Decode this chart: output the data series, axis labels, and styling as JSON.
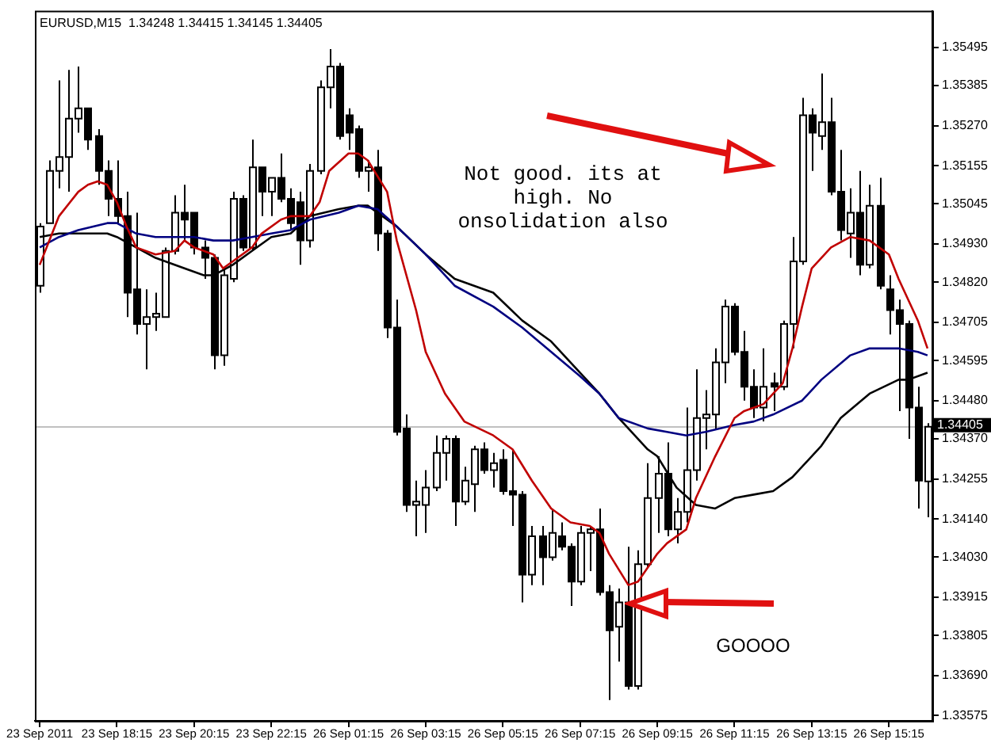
{
  "chart_data": {
    "type": "candlestick",
    "title": "EURUSD,M15  1.34248 1.34415 1.34145 1.34405",
    "categories": [
      "23 Sep 2011",
      null,
      null,
      null,
      null,
      null,
      null,
      null,
      "23 Sep 18:15",
      null,
      null,
      null,
      null,
      null,
      null,
      null,
      "23 Sep 20:15",
      null,
      null,
      null,
      null,
      null,
      null,
      null,
      "23 Sep 22:15",
      null,
      null,
      null,
      null,
      null,
      null,
      null,
      "26 Sep 01:15",
      null,
      null,
      null,
      null,
      null,
      null,
      null,
      "26 Sep 03:15",
      null,
      null,
      null,
      null,
      null,
      null,
      null,
      "26 Sep 05:15",
      null,
      null,
      null,
      null,
      null,
      null,
      null,
      "26 Sep 07:15",
      null,
      null,
      null,
      null,
      null,
      null,
      null,
      "26 Sep 09:15",
      null,
      null,
      null,
      null,
      null,
      null,
      null,
      "26 Sep 11:15",
      null,
      null,
      null,
      null,
      null,
      null,
      null,
      "26 Sep 13:15",
      null,
      null,
      null,
      null,
      null,
      null,
      null,
      "26 Sep 15:15",
      null,
      null,
      null,
      null
    ],
    "ohlc": [
      [
        1.3481,
        1.3499,
        1.3479,
        1.3498
      ],
      [
        1.3499,
        1.3517,
        1.3499,
        1.3514
      ],
      [
        1.3514,
        1.354,
        1.3509,
        1.3518
      ],
      [
        1.3518,
        1.3543,
        1.3508,
        1.3529
      ],
      [
        1.3529,
        1.3544,
        1.3525,
        1.3532
      ],
      [
        1.3532,
        1.3532,
        1.352,
        1.3523
      ],
      [
        1.3524,
        1.3526,
        1.351,
        1.3514
      ],
      [
        1.3514,
        1.3517,
        1.3501,
        1.3506
      ],
      [
        1.3506,
        1.3517,
        1.3499,
        1.3501
      ],
      [
        1.3501,
        1.3508,
        1.3472,
        1.3479
      ],
      [
        1.348,
        1.3502,
        1.3467,
        1.347
      ],
      [
        1.347,
        1.348,
        1.3457,
        1.3472
      ],
      [
        1.3472,
        1.3479,
        1.3468,
        1.3473
      ],
      [
        1.3472,
        1.3492,
        1.3472,
        1.3491
      ],
      [
        1.3491,
        1.3507,
        1.349,
        1.3502
      ],
      [
        1.3502,
        1.351,
        1.3494,
        1.35
      ],
      [
        1.3502,
        1.3502,
        1.349,
        1.3492
      ],
      [
        1.3492,
        1.3494,
        1.3483,
        1.3489
      ],
      [
        1.3489,
        1.349,
        1.3457,
        1.3461
      ],
      [
        1.3461,
        1.3486,
        1.3458,
        1.3484
      ],
      [
        1.3483,
        1.3508,
        1.3482,
        1.3506
      ],
      [
        1.3506,
        1.3507,
        1.3491,
        1.3492
      ],
      [
        1.3492,
        1.3523,
        1.3491,
        1.3515
      ],
      [
        1.3515,
        1.3515,
        1.3501,
        1.3508
      ],
      [
        1.3508,
        1.3512,
        1.3501,
        1.3512
      ],
      [
        1.3512,
        1.3519,
        1.3505,
        1.3506
      ],
      [
        1.3506,
        1.3509,
        1.3497,
        1.3499
      ],
      [
        1.3505,
        1.3508,
        1.3487,
        1.3494
      ],
      [
        1.3494,
        1.3516,
        1.3492,
        1.3514
      ],
      [
        1.3514,
        1.354,
        1.3513,
        1.3538
      ],
      [
        1.3538,
        1.3549,
        1.3532,
        1.3544
      ],
      [
        1.3544,
        1.3545,
        1.3523,
        1.3524
      ],
      [
        1.353,
        1.3532,
        1.352,
        1.3525
      ],
      [
        1.3526,
        1.3527,
        1.3512,
        1.3514
      ],
      [
        1.3514,
        1.3517,
        1.3508,
        1.3515
      ],
      [
        1.3515,
        1.352,
        1.3491,
        1.3496
      ],
      [
        1.3496,
        1.3497,
        1.3466,
        1.3469
      ],
      [
        1.3469,
        1.3477,
        1.3438,
        1.3439
      ],
      [
        1.344,
        1.3444,
        1.3416,
        1.3418
      ],
      [
        1.3418,
        1.3425,
        1.3409,
        1.3419
      ],
      [
        1.3418,
        1.3428,
        1.341,
        1.3423
      ],
      [
        1.3423,
        1.3438,
        1.3422,
        1.3433
      ],
      [
        1.3433,
        1.3438,
        1.3425,
        1.3437
      ],
      [
        1.3437,
        1.3438,
        1.3412,
        1.3419
      ],
      [
        1.3419,
        1.3429,
        1.3418,
        1.3425
      ],
      [
        1.3424,
        1.3435,
        1.3416,
        1.3434
      ],
      [
        1.3434,
        1.3436,
        1.3427,
        1.3428
      ],
      [
        1.3428,
        1.3433,
        1.3423,
        1.343
      ],
      [
        1.3431,
        1.3434,
        1.3421,
        1.3422
      ],
      [
        1.3422,
        1.3434,
        1.3412,
        1.3421
      ],
      [
        1.3421,
        1.3422,
        1.339,
        1.3398
      ],
      [
        1.3398,
        1.3412,
        1.3395,
        1.3409
      ],
      [
        1.3409,
        1.3412,
        1.3395,
        1.3403
      ],
      [
        1.3403,
        1.3417,
        1.3402,
        1.341
      ],
      [
        1.3409,
        1.3413,
        1.3405,
        1.3406
      ],
      [
        1.3406,
        1.3407,
        1.3389,
        1.3396
      ],
      [
        1.3396,
        1.3412,
        1.3395,
        1.341
      ],
      [
        1.341,
        1.3412,
        1.3399,
        1.3411
      ],
      [
        1.3411,
        1.3417,
        1.3392,
        1.3393
      ],
      [
        1.3393,
        1.3395,
        1.3362,
        1.3382
      ],
      [
        1.3383,
        1.3394,
        1.3373,
        1.339
      ],
      [
        1.339,
        1.3406,
        1.3365,
        1.3366
      ],
      [
        1.3366,
        1.3405,
        1.3365,
        1.3401
      ],
      [
        1.3401,
        1.343,
        1.34,
        1.342
      ],
      [
        1.342,
        1.3432,
        1.341,
        1.3427
      ],
      [
        1.3427,
        1.3436,
        1.3409,
        1.3411
      ],
      [
        1.3411,
        1.342,
        1.3407,
        1.3416
      ],
      [
        1.3416,
        1.3446,
        1.3413,
        1.3428
      ],
      [
        1.3428,
        1.3457,
        1.3425,
        1.3443
      ],
      [
        1.3443,
        1.3451,
        1.3434,
        1.3444
      ],
      [
        1.3444,
        1.3463,
        1.344,
        1.3459
      ],
      [
        1.3459,
        1.3477,
        1.3453,
        1.3475
      ],
      [
        1.3475,
        1.3476,
        1.3461,
        1.3462
      ],
      [
        1.3462,
        1.3468,
        1.3448,
        1.3452
      ],
      [
        1.3452,
        1.3457,
        1.3443,
        1.3446
      ],
      [
        1.3446,
        1.3463,
        1.3442,
        1.3452
      ],
      [
        1.3453,
        1.3456,
        1.3445,
        1.3452
      ],
      [
        1.3452,
        1.3471,
        1.3451,
        1.347
      ],
      [
        1.347,
        1.3495,
        1.3463,
        1.3488
      ],
      [
        1.3488,
        1.3535,
        1.3487,
        1.353
      ],
      [
        1.353,
        1.3532,
        1.3514,
        1.3525
      ],
      [
        1.3524,
        1.3542,
        1.352,
        1.3528
      ],
      [
        1.3528,
        1.3535,
        1.3507,
        1.3508
      ],
      [
        1.3508,
        1.352,
        1.3494,
        1.3497
      ],
      [
        1.3496,
        1.3509,
        1.3489,
        1.3502
      ],
      [
        1.3502,
        1.3514,
        1.3484,
        1.3487
      ],
      [
        1.3487,
        1.351,
        1.3486,
        1.3504
      ],
      [
        1.3504,
        1.3512,
        1.348,
        1.3481
      ],
      [
        1.348,
        1.3484,
        1.3467,
        1.3474
      ],
      [
        1.3474,
        1.3477,
        1.3445,
        1.347
      ],
      [
        1.347,
        1.3471,
        1.3437,
        1.3446
      ],
      [
        1.3446,
        1.3452,
        1.3417,
        1.3425
      ],
      [
        1.34248,
        1.34415,
        1.34145,
        1.34405
      ]
    ],
    "series": [
      {
        "type": "line",
        "color": "#c00000",
        "values": [
          1.3487,
          null,
          1.3501,
          null,
          1.3508,
          1.351,
          1.3511,
          1.351,
          1.3505,
          1.3498,
          1.3492,
          null,
          1.349,
          null,
          1.3491,
          1.3494,
          1.3492,
          null,
          1.349,
          1.3486,
          1.3488,
          null,
          1.3492,
          1.3496,
          null,
          1.35,
          1.3501,
          null,
          1.3501,
          1.3505,
          1.3514,
          null,
          1.3519,
          1.3519,
          1.3517,
          null,
          1.3508,
          1.3494,
          null,
          1.3474,
          1.3462,
          null,
          1.345,
          null,
          1.3442,
          null,
          null,
          1.3438,
          null,
          1.3434,
          null,
          1.3425,
          null,
          1.3417,
          null,
          1.3413,
          null,
          1.3412,
          1.341,
          1.3404,
          null,
          1.3395,
          1.3396,
          null,
          1.3404,
          1.3407,
          null,
          1.3411,
          1.342,
          null,
          1.3432,
          null,
          1.3443,
          1.3445,
          null,
          1.3447,
          null,
          1.3453,
          1.3463,
          1.3475,
          1.3486,
          null,
          1.3492,
          null,
          1.3495,
          null,
          1.3494,
          null,
          1.349,
          1.3483,
          null,
          1.3471,
          1.3463
        ]
      },
      {
        "type": "line",
        "color": "#000080",
        "values": [
          1.3492,
          null,
          1.3495,
          null,
          1.3497,
          null,
          null,
          1.3499,
          1.3499,
          null,
          1.3496,
          null,
          1.3495,
          null,
          1.3495,
          null,
          1.3495,
          null,
          1.3494,
          null,
          1.3494,
          null,
          1.3495,
          null,
          1.3496,
          null,
          1.3497,
          null,
          1.35,
          null,
          null,
          1.3502,
          null,
          1.3504,
          null,
          1.3503,
          null,
          1.3498,
          null,
          null,
          1.349,
          null,
          null,
          1.3481,
          null,
          null,
          null,
          1.3475,
          null,
          null,
          1.3469,
          null,
          null,
          1.3462,
          null,
          null,
          1.3455,
          null,
          1.345,
          null,
          1.3443,
          null,
          null,
          1.344,
          null,
          1.3439,
          null,
          1.3438,
          null,
          1.3439,
          null,
          null,
          1.3441,
          null,
          1.3442,
          null,
          1.3444,
          null,
          null,
          1.3448,
          null,
          1.3454,
          null,
          null,
          1.3461,
          null,
          1.3463,
          null,
          null,
          1.3463,
          null,
          1.3462,
          1.3461
        ]
      },
      {
        "type": "line",
        "color": "#000000",
        "values": [
          1.3495,
          null,
          1.3496,
          null,
          1.3496,
          null,
          null,
          1.3496,
          1.3495,
          null,
          1.3492,
          null,
          1.3489,
          null,
          null,
          1.3486,
          null,
          1.3484,
          1.3484,
          null,
          1.3487,
          null,
          1.3491,
          null,
          1.3495,
          null,
          1.3496,
          null,
          1.3501,
          null,
          null,
          1.3503,
          null,
          1.3504,
          1.3504,
          null,
          null,
          1.3498,
          null,
          null,
          1.349,
          null,
          null,
          1.3483,
          null,
          null,
          null,
          1.3479,
          null,
          null,
          1.3471,
          null,
          null,
          1.3465,
          null,
          null,
          1.3456,
          null,
          1.345,
          null,
          1.3443,
          null,
          null,
          1.3434,
          1.3432,
          null,
          1.3423,
          null,
          1.3418,
          null,
          1.3417,
          null,
          1.342,
          null,
          1.3421,
          null,
          1.3422,
          null,
          1.3426,
          null,
          null,
          1.3435,
          null,
          1.3443,
          null,
          null,
          1.345,
          null,
          null,
          1.3454,
          1.3454,
          null,
          1.3456
        ]
      }
    ],
    "ylim": [
      1.3356,
      1.356
    ],
    "yticks": [
      1.35495,
      1.35385,
      {
        "value": 1.3527,
        "label": "1.35270"
      },
      1.35155,
      1.35045,
      {
        "value": 1.3493,
        "label": "1.34930"
      },
      {
        "value": 1.3482,
        "label": "1.34820"
      },
      1.34705,
      1.34595,
      {
        "value": 1.3448,
        "label": "1.34480"
      },
      {
        "value": 1.3437,
        "label": "1.34370"
      },
      1.34255,
      {
        "value": 1.3414,
        "label": "1.34140"
      },
      {
        "value": 1.3403,
        "label": "1.34030"
      },
      1.33915,
      1.33805,
      {
        "value": 1.3369,
        "label": "1.33690"
      },
      1.33575
    ],
    "ref_lines": [
      {
        "axis": "y",
        "value": 1.34405,
        "label": "1.34405",
        "color": "#c0c0c0"
      }
    ],
    "annotations": [
      "Not good. its at\nhigh. No\nonsolidation also",
      "GOOOO"
    ],
    "grid": false,
    "legend": false
  }
}
